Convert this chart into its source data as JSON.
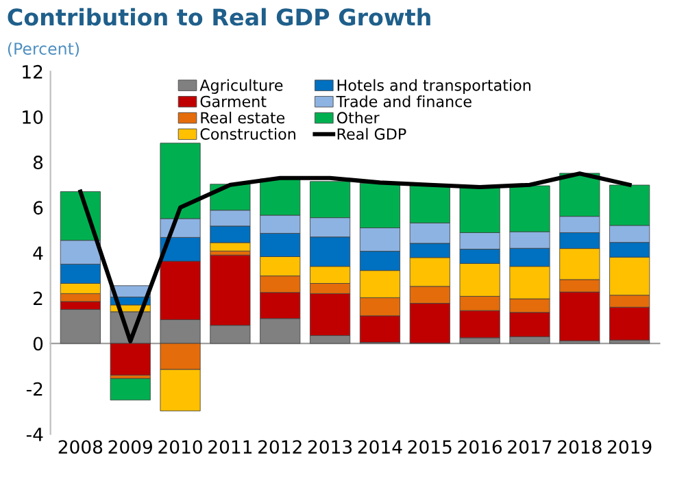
{
  "chart_data": {
    "type": "bar",
    "title": "Contribution to Real GDP Growth",
    "subtitle": "(Percent)",
    "stacked": true,
    "categories": [
      "2008",
      "2009",
      "2010",
      "2011",
      "2012",
      "2013",
      "2014",
      "2015",
      "2016",
      "2017",
      "2018",
      "2019"
    ],
    "series": [
      {
        "name": "Agriculture",
        "color": "#808080",
        "values": [
          1.5,
          1.4,
          1.05,
          0.8,
          1.1,
          0.35,
          0.05,
          0.02,
          0.25,
          0.3,
          0.12,
          0.15
        ]
      },
      {
        "name": "Garment",
        "color": "#c00000",
        "values": [
          0.35,
          -1.4,
          2.58,
          3.1,
          1.15,
          1.85,
          1.17,
          1.75,
          1.2,
          1.07,
          2.15,
          1.45
        ]
      },
      {
        "name": "Real estate",
        "color": "#e46c0a",
        "values": [
          0.35,
          -0.15,
          -1.15,
          0.18,
          0.73,
          0.45,
          0.8,
          0.75,
          0.63,
          0.6,
          0.55,
          0.53
        ]
      },
      {
        "name": "Construction",
        "color": "#ffc000",
        "values": [
          0.45,
          0.3,
          -1.83,
          0.37,
          0.85,
          0.75,
          1.2,
          1.27,
          1.45,
          1.43,
          1.37,
          1.68
        ]
      },
      {
        "name": "Hotels and transportation",
        "color": "#0070c0",
        "values": [
          0.85,
          0.35,
          1.05,
          0.73,
          1.03,
          1.3,
          0.85,
          0.63,
          0.63,
          0.8,
          0.7,
          0.65
        ]
      },
      {
        "name": "Trade and finance",
        "color": "#8db3e2",
        "values": [
          1.05,
          0.5,
          0.83,
          0.7,
          0.8,
          0.85,
          1.03,
          0.9,
          0.73,
          0.73,
          0.72,
          0.75
        ]
      },
      {
        "name": "Other",
        "color": "#00b050",
        "values": [
          2.15,
          -0.95,
          3.33,
          1.15,
          1.6,
          1.6,
          1.97,
          1.68,
          2.0,
          2.03,
          1.9,
          1.78
        ]
      },
      {
        "name": "Real GDP",
        "type": "line",
        "color": "#000000",
        "values": [
          6.7,
          0.1,
          6.0,
          7.0,
          7.3,
          7.3,
          7.1,
          7.0,
          6.9,
          7.0,
          7.5,
          7.0
        ]
      }
    ],
    "ylim": [
      -4,
      12
    ],
    "yticks": [
      -4,
      -2,
      0,
      2,
      4,
      6,
      8,
      10,
      12
    ],
    "legend": "top"
  }
}
